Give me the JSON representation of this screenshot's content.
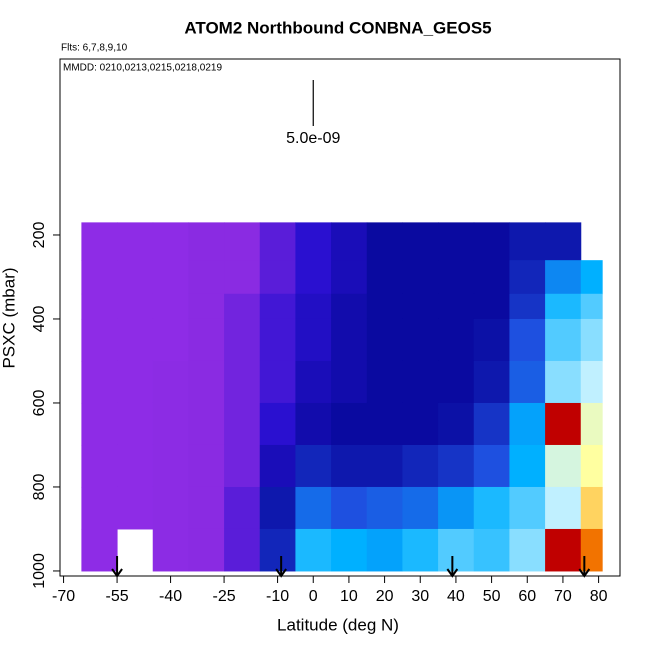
{
  "chart_data": {
    "type": "heatmap",
    "title": "ATOM2 Northbound CONBNA_GEOS5",
    "subtitle": "Flts: 6,7,8,9,10",
    "annotation": "MMDD: 0210,0213,0215,0218,0219",
    "x_label": "Latitude (deg N)",
    "y_label": "PSXC (mbar)",
    "xlim": [
      -71,
      86
    ],
    "ylim": [
      1012,
      -219
    ],
    "xticks": [
      -70,
      -55,
      -40,
      -25,
      -10,
      0,
      10,
      20,
      30,
      40,
      50,
      60,
      70,
      80
    ],
    "yticks": [
      200,
      400,
      600,
      800,
      1000
    ],
    "x_edges": [
      -65,
      -55,
      -45,
      -35,
      -25,
      -15,
      -5,
      5,
      15,
      25,
      35,
      45,
      55,
      65,
      75,
      81
    ],
    "y_edges": [
      170,
      260,
      340,
      400,
      500,
      600,
      700,
      800,
      900,
      1000
    ],
    "values": [
      [
        8e-10,
        8e-10,
        8e-10,
        9e-10,
        9e-10,
        1e-09,
        1.1e-09,
        1.2e-09,
        1.3e-09,
        1.3e-09,
        1.3e-09,
        1.3e-09,
        1.4e-09,
        1.4e-09,
        null
      ],
      [
        8e-10,
        8e-10,
        8e-10,
        9e-10,
        9e-10,
        1e-09,
        1.1e-09,
        1.2e-09,
        1.3e-09,
        1.3e-09,
        1.3e-09,
        1.3e-09,
        1.5e-09,
        2.2e-09,
        2.5e-09
      ],
      [
        8e-10,
        8e-10,
        8e-10,
        9e-10,
        9.5e-10,
        1.05e-09,
        1.15e-09,
        1.25e-09,
        1.3e-09,
        1.3e-09,
        1.3e-09,
        1.3e-09,
        1.6e-09,
        2.6e-09,
        2.8e-09
      ],
      [
        8e-10,
        8e-10,
        8e-10,
        9e-10,
        9.5e-10,
        1.05e-09,
        1.15e-09,
        1.25e-09,
        1.3e-09,
        1.3e-09,
        1.3e-09,
        1.35e-09,
        1.8e-09,
        2.8e-09,
        3e-09
      ],
      [
        8e-10,
        8e-10,
        8.5e-10,
        9e-10,
        9.5e-10,
        1.05e-09,
        1.2e-09,
        1.25e-09,
        1.3e-09,
        1.3e-09,
        1.3e-09,
        1.4e-09,
        1.9e-09,
        3e-09,
        3.2e-09
      ],
      [
        8e-10,
        8e-10,
        8.5e-10,
        9e-10,
        9.5e-10,
        1.1e-09,
        1.25e-09,
        1.3e-09,
        1.3e-09,
        1.3e-09,
        1.35e-09,
        1.6e-09,
        2.4e-09,
        4.8e-09,
        3.6e-09
      ],
      [
        8e-10,
        8e-10,
        8.5e-10,
        9e-10,
        9.5e-10,
        1.2e-09,
        1.5e-09,
        1.4e-09,
        1.4e-09,
        1.5e-09,
        1.6e-09,
        1.8e-09,
        2.5e-09,
        3.4e-09,
        3.8e-09
      ],
      [
        8e-10,
        8e-10,
        8.5e-10,
        9e-10,
        1e-09,
        1.4e-09,
        2e-09,
        1.8e-09,
        1.9e-09,
        2e-09,
        2.3e-09,
        2.6e-09,
        2.8e-09,
        3.2e-09,
        4e-09
      ],
      [
        8e-10,
        null,
        8.5e-10,
        9e-10,
        1e-09,
        1.5e-09,
        2.6e-09,
        2.5e-09,
        2.4e-09,
        2.6e-09,
        2.8e-09,
        2.7e-09,
        3e-09,
        4.8e-09,
        4.4e-09
      ]
    ],
    "colorscale": [
      [
        5e-10,
        "#9a30f0"
      ],
      [
        9e-10,
        "#8a2be2"
      ],
      [
        1.1e-09,
        "#2a10d0"
      ],
      [
        1.3e-09,
        "#0a0aa0"
      ],
      [
        1.8e-09,
        "#1e50e0"
      ],
      [
        2.5e-09,
        "#00b0ff"
      ],
      [
        3.2e-09,
        "#c0f0ff"
      ],
      [
        3.8e-09,
        "#ffffa0"
      ],
      [
        4.3e-09,
        "#ff9000"
      ],
      [
        4.8e-09,
        "#c00000"
      ],
      [
        5.2e-09,
        "#700000"
      ]
    ],
    "scale_bar": {
      "x": 0,
      "label": "5.0e-09"
    },
    "arrows_x": [
      -55,
      -9,
      39,
      76
    ]
  }
}
